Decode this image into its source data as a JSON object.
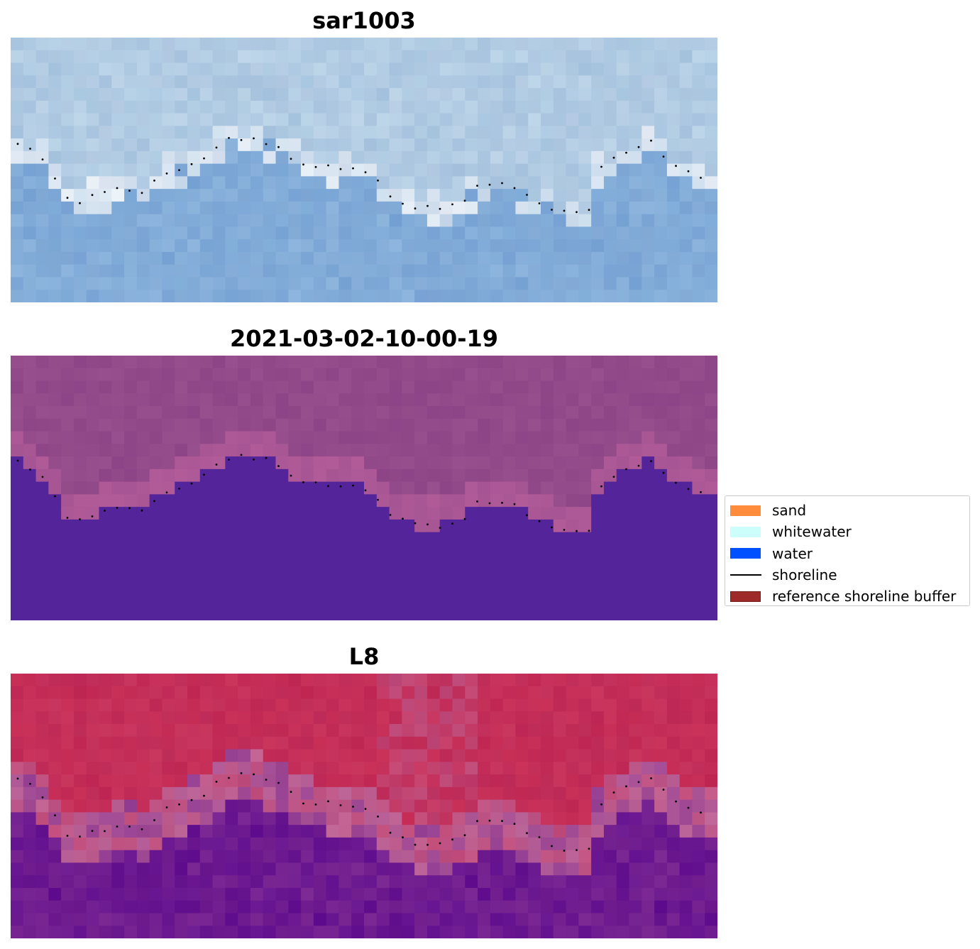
{
  "panels": [
    {
      "title": "sar1003",
      "kind": "sar"
    },
    {
      "title": "2021-03-02-10-00-19",
      "kind": "classified"
    },
    {
      "title": "L8",
      "kind": "falsecolor"
    }
  ],
  "legend": {
    "items": [
      {
        "label": "sand",
        "type": "patch",
        "color": "#ff8c3c",
        "edge": "#ff8c3c"
      },
      {
        "label": "whitewater",
        "type": "patch",
        "color": "#ccfffb",
        "edge": "#ccfffb"
      },
      {
        "label": "water",
        "type": "patch",
        "color": "#0050ff",
        "edge": "#0050ff"
      },
      {
        "label": "shoreline",
        "type": "line",
        "color": "#000000"
      },
      {
        "label": "reference shoreline buffer",
        "type": "patch",
        "color": "#9e2a2a",
        "edge": "#7a1d1d"
      }
    ]
  },
  "colors": {
    "sar_water": "#7aa6d6",
    "sar_land": "#a9c6e0",
    "sar_whitewater": "#e8eef6",
    "classified_land": "#934a8a",
    "classified_water": "#53249a",
    "classified_buffer": "#b25b99",
    "l8_land": "#c42b55",
    "l8_water": "#62108f",
    "l8_buffer": "#bd6597",
    "shoreline_dots": "#000000"
  }
}
